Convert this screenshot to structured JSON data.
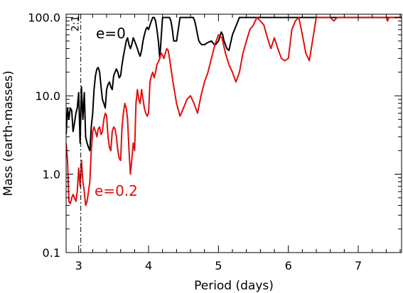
{
  "chart_data": {
    "type": "line",
    "xlabel": "Period (days)",
    "ylabel": "Mass (earth-masses)",
    "xlim": [
      2.82,
      7.62
    ],
    "ylim": [
      0.1,
      110
    ],
    "y_scale": "log",
    "grid": false,
    "x_ticks": [
      3,
      4,
      5,
      6,
      7
    ],
    "x_tick_labels": [
      "3",
      "4",
      "5",
      "6",
      "7"
    ],
    "y_ticks": [
      0.1,
      1.0,
      10.0,
      100.0
    ],
    "y_tick_labels": [
      "0.1",
      "1.0",
      "10.0",
      "100.0"
    ],
    "vline": {
      "x": 3.03,
      "label": "2:1",
      "style": "dash-dot"
    },
    "series": [
      {
        "name": "e=0",
        "label_text": "e=0",
        "color": "#000000",
        "x": [
          2.82,
          2.84,
          2.86,
          2.88,
          2.9,
          2.92,
          2.94,
          2.96,
          2.98,
          3.0,
          3.02,
          3.04,
          3.06,
          3.08,
          3.1,
          3.12,
          3.14,
          3.16,
          3.18,
          3.2,
          3.22,
          3.24,
          3.26,
          3.28,
          3.3,
          3.32,
          3.34,
          3.36,
          3.38,
          3.4,
          3.42,
          3.44,
          3.46,
          3.48,
          3.5,
          3.52,
          3.54,
          3.56,
          3.58,
          3.6,
          3.62,
          3.64,
          3.66,
          3.68,
          3.7,
          3.72,
          3.74,
          3.76,
          3.78,
          3.8,
          3.82,
          3.84,
          3.86,
          3.88,
          3.9,
          3.92,
          3.94,
          3.96,
          3.98,
          4.0,
          4.02,
          4.04,
          4.06,
          4.08,
          4.1,
          4.12,
          4.14,
          4.16,
          4.2,
          4.25,
          4.3,
          4.32,
          4.34,
          4.36,
          4.4,
          4.45,
          4.5,
          4.55,
          4.6,
          4.64,
          4.66,
          4.68,
          4.7,
          4.72,
          4.74,
          4.76,
          4.8,
          4.85,
          4.9,
          4.95,
          5.0,
          5.04,
          5.06,
          5.08,
          5.1,
          5.12,
          5.15,
          5.2,
          5.3,
          5.4,
          5.5,
          5.6,
          5.8,
          6.0,
          6.2,
          6.4,
          6.6,
          6.8,
          7.0,
          7.2,
          7.4,
          7.62
        ],
        "y": [
          3.2,
          7,
          5,
          7,
          6.5,
          3.5,
          4.5,
          6,
          7,
          11,
          2.5,
          13,
          5,
          11,
          3,
          2.5,
          2.2,
          2.0,
          4,
          6,
          12,
          18,
          22,
          23,
          20,
          13,
          9,
          8,
          7,
          12,
          14,
          15,
          13,
          12,
          18,
          20,
          22,
          20,
          17,
          18,
          25,
          32,
          40,
          50,
          55,
          45,
          40,
          45,
          55,
          50,
          45,
          40,
          35,
          32,
          38,
          50,
          60,
          70,
          75,
          70,
          80,
          90,
          100,
          100,
          90,
          70,
          50,
          30,
          100,
          100,
          100,
          90,
          70,
          50,
          50,
          100,
          100,
          100,
          100,
          100,
          90,
          75,
          60,
          50,
          47,
          45,
          45,
          48,
          50,
          44,
          50,
          65,
          60,
          50,
          45,
          40,
          38,
          60,
          100,
          100,
          100,
          100,
          100,
          100,
          100,
          100,
          100,
          100,
          100,
          100,
          100,
          100
        ]
      },
      {
        "name": "e=0.2",
        "label_text": "e=0.2",
        "color": "#e01010",
        "x": [
          2.82,
          2.84,
          2.86,
          2.88,
          2.9,
          2.92,
          2.94,
          2.96,
          2.98,
          3.0,
          3.02,
          3.04,
          3.06,
          3.08,
          3.1,
          3.12,
          3.14,
          3.16,
          3.18,
          3.2,
          3.22,
          3.24,
          3.26,
          3.28,
          3.3,
          3.32,
          3.34,
          3.36,
          3.38,
          3.4,
          3.42,
          3.44,
          3.46,
          3.48,
          3.5,
          3.52,
          3.54,
          3.56,
          3.58,
          3.6,
          3.62,
          3.64,
          3.66,
          3.68,
          3.7,
          3.72,
          3.74,
          3.76,
          3.78,
          3.8,
          3.82,
          3.84,
          3.86,
          3.88,
          3.9,
          3.92,
          3.94,
          3.96,
          3.98,
          4.0,
          4.02,
          4.04,
          4.06,
          4.08,
          4.1,
          4.12,
          4.14,
          4.16,
          4.18,
          4.2,
          4.22,
          4.24,
          4.26,
          4.28,
          4.3,
          4.35,
          4.4,
          4.45,
          4.5,
          4.55,
          4.6,
          4.65,
          4.7,
          4.75,
          4.8,
          4.85,
          4.9,
          4.95,
          5.0,
          5.05,
          5.1,
          5.15,
          5.2,
          5.25,
          5.3,
          5.35,
          5.4,
          5.45,
          5.5,
          5.55,
          5.6,
          5.65,
          5.7,
          5.75,
          5.8,
          5.85,
          5.9,
          5.95,
          6.0,
          6.05,
          6.1,
          6.15,
          6.2,
          6.25,
          6.3,
          6.4,
          6.5,
          6.6,
          6.65,
          6.7,
          6.75,
          6.8,
          6.9,
          7.0,
          7.1,
          7.2,
          7.3,
          7.4,
          7.42,
          7.44,
          7.5,
          7.62
        ],
        "y": [
          2.5,
          1.5,
          0.45,
          0.42,
          0.5,
          0.55,
          0.5,
          0.45,
          0.6,
          1.2,
          0.7,
          1.5,
          0.8,
          0.6,
          0.4,
          0.45,
          0.6,
          0.8,
          2.0,
          3.5,
          4.0,
          3.5,
          3.0,
          3.8,
          4.0,
          3.2,
          3.5,
          5.0,
          6.0,
          5.5,
          3.0,
          2.2,
          2.0,
          3.5,
          4.0,
          3.8,
          3.0,
          2.0,
          1.6,
          1.5,
          4.0,
          6.0,
          8.0,
          7.0,
          5.0,
          2.0,
          1.0,
          1.5,
          2.5,
          2.0,
          8.0,
          12.0,
          9.0,
          8.0,
          12.0,
          9.0,
          7.0,
          6.0,
          5.5,
          6.0,
          15.0,
          18.0,
          20.0,
          17.0,
          20.0,
          25.0,
          27.0,
          30.0,
          35.0,
          33.0,
          30.0,
          35.0,
          40.0,
          38.0,
          30.0,
          15.0,
          8.0,
          5.5,
          7.0,
          9.0,
          10.0,
          8.0,
          6.0,
          10.0,
          15.0,
          20.0,
          30.0,
          45.0,
          60.0,
          55.0,
          35.0,
          25.0,
          20.0,
          15.0,
          20.0,
          35.0,
          50.0,
          70.0,
          80.0,
          100.0,
          90.0,
          80.0,
          55.0,
          40.0,
          55.0,
          40.0,
          30.0,
          28.0,
          30.0,
          70.0,
          90.0,
          100.0,
          60.0,
          35.0,
          28.0,
          100.0,
          100.0,
          100.0,
          90.0,
          100.0,
          100.0,
          100.0,
          100.0,
          100.0,
          100.0,
          100.0,
          100.0,
          100.0,
          90.0,
          100.0,
          100.0,
          100.0
        ]
      }
    ]
  }
}
